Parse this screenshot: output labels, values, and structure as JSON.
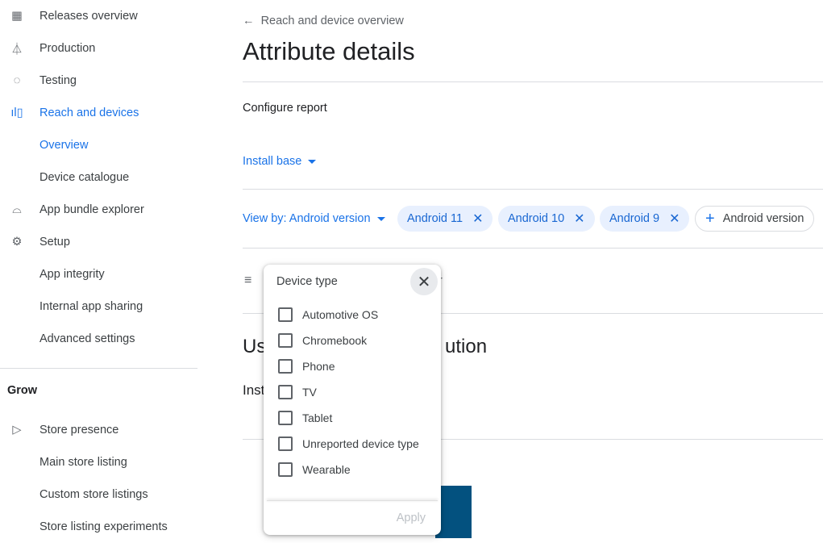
{
  "sidebar": {
    "items": [
      {
        "label": "Releases overview",
        "icon": "releases-icon"
      },
      {
        "label": "Production",
        "icon": "production-icon"
      },
      {
        "label": "Testing",
        "icon": "testing-icon"
      },
      {
        "label": "Reach and devices",
        "icon": "reach-devices-icon",
        "active": true
      },
      {
        "label": "Overview",
        "active": true
      },
      {
        "label": "Device catalogue"
      },
      {
        "label": "App bundle explorer",
        "icon": "android-icon"
      },
      {
        "label": "Setup",
        "icon": "gear-icon"
      },
      {
        "label": "App integrity"
      },
      {
        "label": "Internal app sharing"
      },
      {
        "label": "Advanced settings"
      }
    ],
    "section": "Grow",
    "grow_items": [
      {
        "label": "Store presence",
        "icon": "play-icon"
      },
      {
        "label": "Main store listing"
      },
      {
        "label": "Custom store listings"
      },
      {
        "label": "Store listing experiments"
      }
    ]
  },
  "main": {
    "back": "Reach and device overview",
    "title": "Attribute details",
    "configure": "Configure report",
    "metric": "Install base",
    "view_by": "View by: Android version",
    "chips": [
      "Android 11",
      "Android 10",
      "Android 9"
    ],
    "add_chip": "Android version",
    "filter_tail": "r",
    "heading_left": "Us",
    "heading_right": "ution",
    "sub_left": "Inst"
  },
  "popup": {
    "title": "Device type",
    "options": [
      "Automotive OS",
      "Chromebook",
      "Phone",
      "TV",
      "Tablet",
      "Unreported device type",
      "Wearable"
    ],
    "apply": "Apply"
  },
  "colors": {
    "accent": "#1a73e8",
    "chip_bg": "#e8f0fe",
    "bar": "#03517f"
  }
}
